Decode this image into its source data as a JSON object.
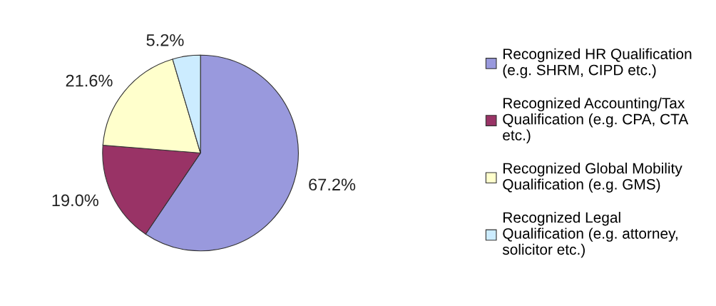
{
  "chart_data": {
    "type": "pie",
    "categories": [
      "Recognized HR Qualification\n(e.g. SHRM, CIPD etc.)",
      "Recognized Accounting/Tax\nQualification (e.g. CPA, CTA\netc.)",
      "Recognized Global Mobility\nQualification (e.g. GMS)",
      "Recognized Legal\nQualification (e.g. attorney,\nsolicitor etc.)"
    ],
    "values": [
      67.2,
      19.0,
      21.6,
      5.2
    ],
    "colors": [
      "#9999dd",
      "#993366",
      "#ffffcc",
      "#ccecff"
    ],
    "value_labels": [
      "67.2%",
      "19.0%",
      "21.6%",
      "5.2%"
    ],
    "legend": "right"
  }
}
